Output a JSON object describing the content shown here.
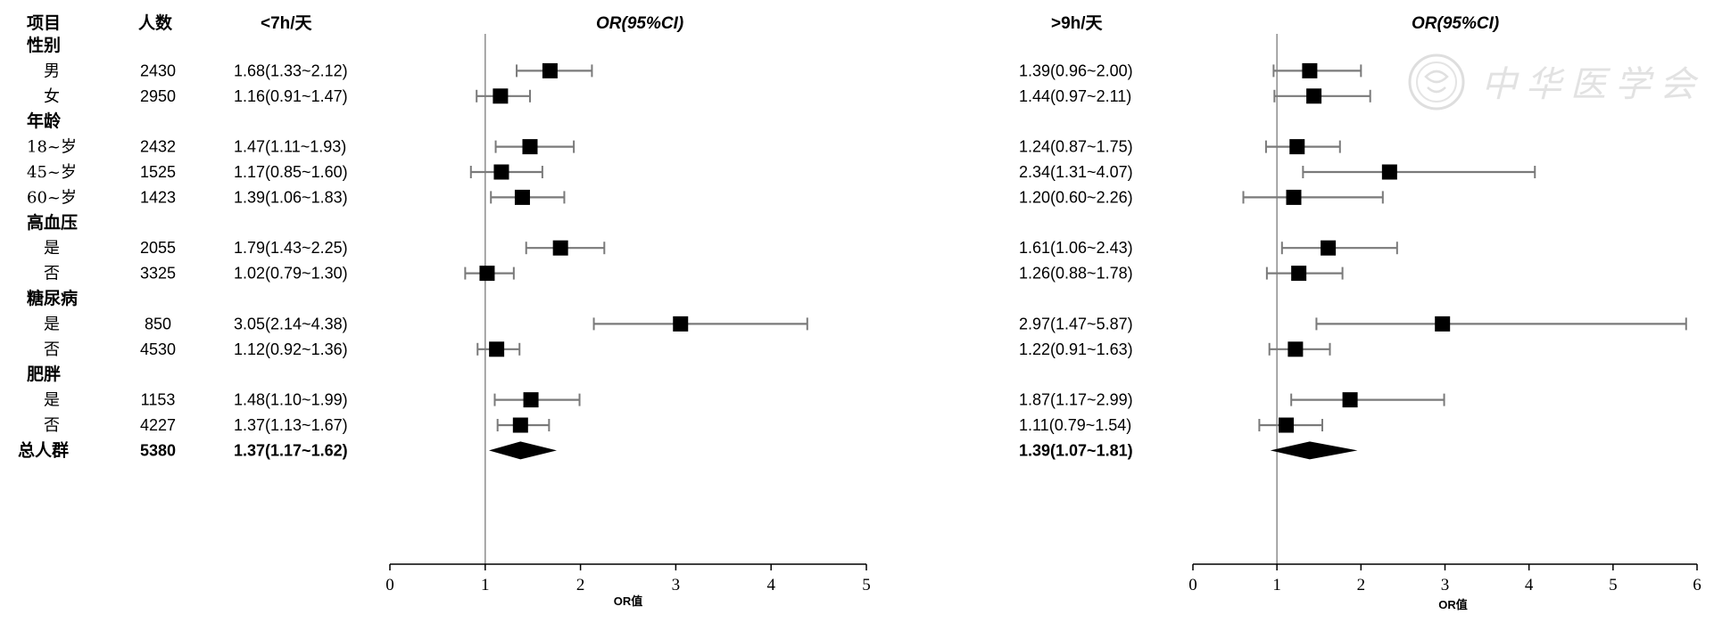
{
  "headers": {
    "item": "项目",
    "n": "人数",
    "left_group": "<7h/天",
    "left_or": "OR(95%CI)",
    "right_group": ">9h/天",
    "right_or": "OR(95%CI)"
  },
  "watermark": "中华医学会",
  "colors": {
    "ci_line": "#7a7a7a",
    "marker": "#000000",
    "ref_line": "#8c8c8c"
  },
  "rows": [
    {
      "label": "性别",
      "kind": "group"
    },
    {
      "label": "男",
      "kind": "sub",
      "n": "2430",
      "left_text": "1.68(1.33~2.12)",
      "right_text": "1.39(0.96~2.00)"
    },
    {
      "label": "女",
      "kind": "sub",
      "n": "2950",
      "left_text": "1.16(0.91~1.47)",
      "right_text": "1.44(0.97~2.11)"
    },
    {
      "label": "年龄",
      "kind": "group"
    },
    {
      "label": "18~岁",
      "kind": "sub",
      "n": "2432",
      "left_text": "1.47(1.11~1.93)",
      "right_text": "1.24(0.87~1.75)"
    },
    {
      "label": "45~岁",
      "kind": "sub",
      "n": "1525",
      "left_text": "1.17(0.85~1.60)",
      "right_text": "2.34(1.31~4.07)"
    },
    {
      "label": "60~岁",
      "kind": "sub",
      "n": "1423",
      "left_text": "1.39(1.06~1.83)",
      "right_text": "1.20(0.60~2.26)"
    },
    {
      "label": "高血压",
      "kind": "group"
    },
    {
      "label": "是",
      "kind": "sub",
      "n": "2055",
      "left_text": "1.79(1.43~2.25)",
      "right_text": "1.61(1.06~2.43)"
    },
    {
      "label": "否",
      "kind": "sub",
      "n": "3325",
      "left_text": "1.02(0.79~1.30)",
      "right_text": "1.26(0.88~1.78)"
    },
    {
      "label": "糖尿病",
      "kind": "group"
    },
    {
      "label": "是",
      "kind": "sub",
      "n": "850",
      "left_text": "3.05(2.14~4.38)",
      "right_text": "2.97(1.47~5.87)"
    },
    {
      "label": "否",
      "kind": "sub",
      "n": "4530",
      "left_text": "1.12(0.92~1.36)",
      "right_text": "1.22(0.91~1.63)"
    },
    {
      "label": "肥胖",
      "kind": "group"
    },
    {
      "label": "是",
      "kind": "sub",
      "n": "1153",
      "left_text": "1.48(1.10~1.99)",
      "right_text": "1.87(1.17~2.99)"
    },
    {
      "label": "否",
      "kind": "sub",
      "n": "4227",
      "left_text": "1.37(1.13~1.67)",
      "right_text": "1.11(0.79~1.54)"
    },
    {
      "label": "总人群",
      "kind": "total",
      "n": "5380",
      "left_text": "1.37(1.17~1.62)",
      "right_text": "1.39(1.07~1.81)"
    }
  ],
  "chart_data": [
    {
      "type": "forest",
      "group": "<7h/天",
      "xlabel": "OR值",
      "xlim": [
        0,
        5
      ],
      "xticks": [
        0,
        1,
        2,
        3,
        4,
        5
      ],
      "reference": 1,
      "points": [
        {
          "or": 1.68,
          "lo": 1.33,
          "hi": 2.12
        },
        {
          "or": 1.16,
          "lo": 0.91,
          "hi": 1.47
        },
        {
          "or": 1.47,
          "lo": 1.11,
          "hi": 1.93
        },
        {
          "or": 1.17,
          "lo": 0.85,
          "hi": 1.6
        },
        {
          "or": 1.39,
          "lo": 1.06,
          "hi": 1.83
        },
        {
          "or": 1.79,
          "lo": 1.43,
          "hi": 2.25
        },
        {
          "or": 1.02,
          "lo": 0.79,
          "hi": 1.3
        },
        {
          "or": 3.05,
          "lo": 2.14,
          "hi": 4.38
        },
        {
          "or": 1.12,
          "lo": 0.92,
          "hi": 1.36
        },
        {
          "or": 1.48,
          "lo": 1.1,
          "hi": 1.99
        },
        {
          "or": 1.37,
          "lo": 1.13,
          "hi": 1.67
        }
      ],
      "overall": {
        "or": 1.37,
        "lo": 1.17,
        "hi": 1.62
      }
    },
    {
      "type": "forest",
      "group": ">9h/天",
      "xlabel": "OR值",
      "xlim": [
        0,
        6
      ],
      "xticks": [
        0,
        1,
        2,
        3,
        4,
        5,
        6
      ],
      "reference": 1,
      "points": [
        {
          "or": 1.39,
          "lo": 0.96,
          "hi": 2.0
        },
        {
          "or": 1.44,
          "lo": 0.97,
          "hi": 2.11
        },
        {
          "or": 1.24,
          "lo": 0.87,
          "hi": 1.75
        },
        {
          "or": 2.34,
          "lo": 1.31,
          "hi": 4.07
        },
        {
          "or": 1.2,
          "lo": 0.6,
          "hi": 2.26
        },
        {
          "or": 1.61,
          "lo": 1.06,
          "hi": 2.43
        },
        {
          "or": 1.26,
          "lo": 0.88,
          "hi": 1.78
        },
        {
          "or": 2.97,
          "lo": 1.47,
          "hi": 5.87
        },
        {
          "or": 1.22,
          "lo": 0.91,
          "hi": 1.63
        },
        {
          "or": 1.87,
          "lo": 1.17,
          "hi": 2.99
        },
        {
          "or": 1.11,
          "lo": 0.79,
          "hi": 1.54
        }
      ],
      "overall": {
        "or": 1.39,
        "lo": 1.07,
        "hi": 1.81
      }
    }
  ]
}
